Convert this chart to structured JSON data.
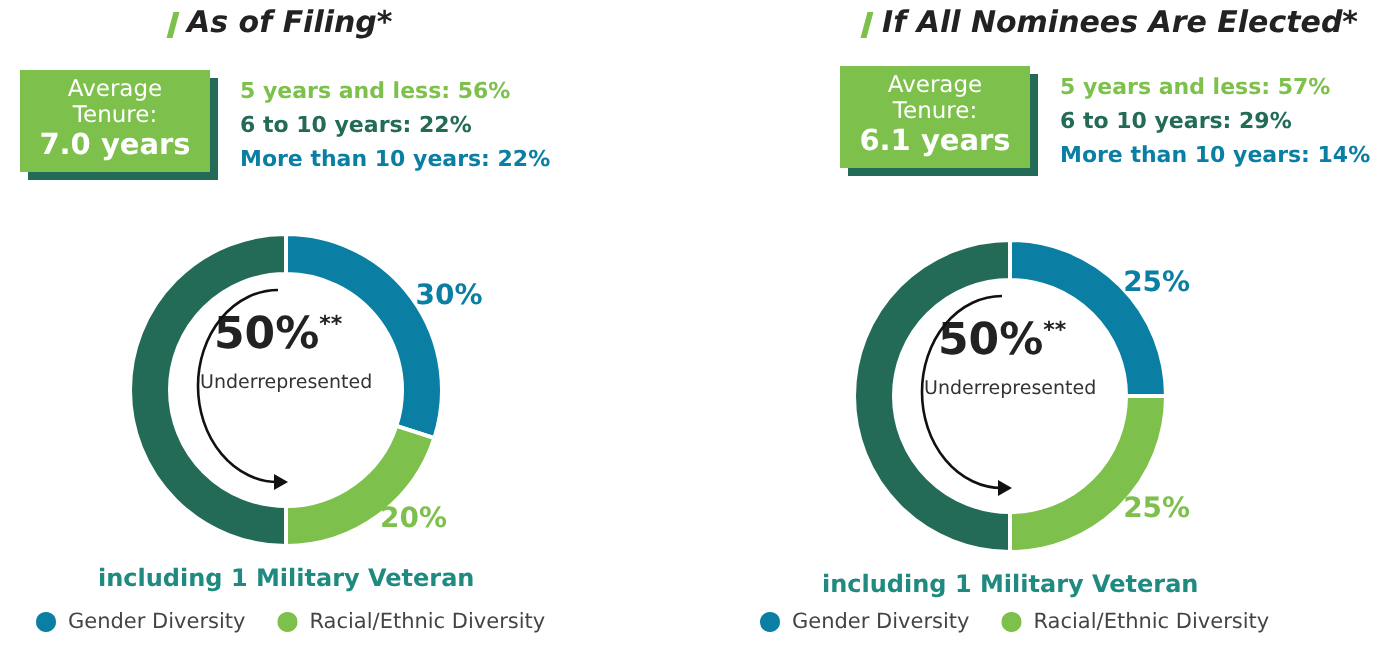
{
  "chart_data": [
    {
      "type": "donut",
      "title": "As of Filing*",
      "categories": [
        "Gender Diversity",
        "Racial/Ethnic Diversity",
        null
      ],
      "values": [
        30,
        20,
        50
      ],
      "colors": [
        "#0a7fa3",
        "#7dc04b",
        "#236b57"
      ],
      "value_labels": [
        "30%",
        "20%",
        null
      ],
      "legend": "bottom",
      "annotations": [
        "Average Tenure:",
        "7.0 years",
        "5 years and less: 56%",
        "6 to 10 years: 22%",
        "More than 10 years: 22%",
        "50%$^{**}$",
        "Underrepresented",
        "including 1 Military Veteran"
      ]
    },
    {
      "type": "donut",
      "title": "If All Nominees Are Elected*",
      "categories": [
        "Gender Diversity",
        "Racial/Ethnic Diversity",
        null
      ],
      "values": [
        25,
        25,
        50
      ],
      "colors": [
        "#0a7fa3",
        "#7dc04b",
        "#236b57"
      ],
      "value_labels": [
        "25%",
        "25%",
        null
      ],
      "legend": "bottom",
      "annotations": [
        "Average Tenure:",
        "6.1 years",
        "5 years and less: 57%",
        "6 to 10 years: 29%",
        "More than 10 years: 14%",
        "50%$^{**}$",
        "Underrepresented",
        "including 1 Military Veteran"
      ]
    }
  ]
}
